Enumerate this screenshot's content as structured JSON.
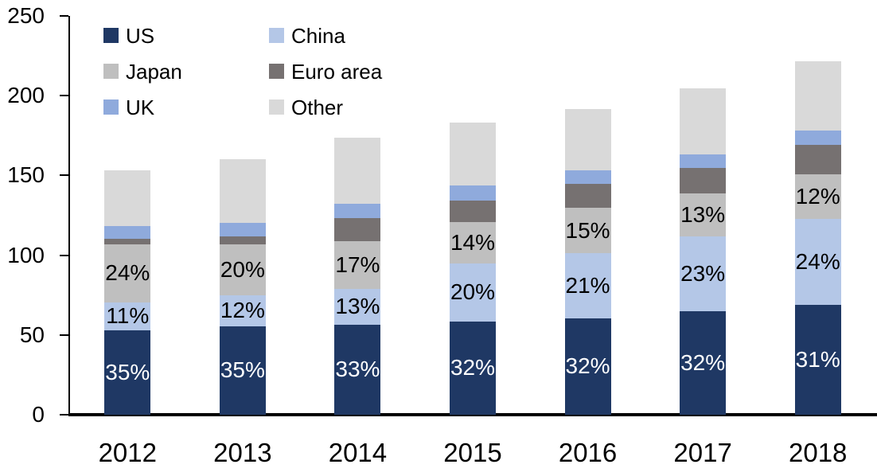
{
  "chart_data": {
    "type": "bar",
    "stacked": true,
    "title": "",
    "categories": [
      "2012",
      "2013",
      "2014",
      "2015",
      "2016",
      "2017",
      "2018"
    ],
    "series": [
      {
        "name": "US",
        "color": "#1f3864",
        "values": [
          53,
          55.5,
          56.5,
          58.5,
          60.5,
          65,
          69
        ],
        "labels": [
          "35%",
          "35%",
          "33%",
          "32%",
          "32%",
          "32%",
          "31%"
        ],
        "label_color": "#ffffff"
      },
      {
        "name": "China",
        "color": "#b4c7e7",
        "values": [
          17.5,
          19.5,
          22.5,
          36.5,
          41,
          47,
          54
        ],
        "labels": [
          "11%",
          "12%",
          "13%",
          "20%",
          "21%",
          "23%",
          "24%"
        ],
        "label_color": "#000000"
      },
      {
        "name": "Japan",
        "color": "#bfbfbf",
        "values": [
          36.5,
          32,
          30,
          26,
          28,
          26.5,
          27.5
        ],
        "labels": [
          "24%",
          "20%",
          "17%",
          "14%",
          "15%",
          "13%",
          "12%"
        ],
        "label_color": "#000000"
      },
      {
        "name": "Euro area",
        "color": "#767171",
        "values": [
          3.5,
          5,
          14.5,
          13,
          15,
          16,
          18.5
        ],
        "labels": null,
        "label_color": "#000000"
      },
      {
        "name": "UK",
        "color": "#8faadc",
        "values": [
          8,
          8.5,
          8.5,
          9.5,
          8.5,
          8.5,
          9
        ],
        "labels": null,
        "label_color": "#000000"
      },
      {
        "name": "Other",
        "color": "#d9d9d9",
        "values": [
          34.5,
          39.5,
          41.5,
          39.5,
          38.5,
          41.5,
          43.5
        ],
        "labels": null,
        "label_color": "#000000"
      }
    ],
    "y_axis": {
      "min": 0,
      "max": 250,
      "ticks": [
        0,
        50,
        100,
        150,
        200,
        250
      ]
    },
    "xlabel": "",
    "ylabel": "",
    "grid": false,
    "legend": {
      "position": "top-left",
      "columns": 2
    },
    "axis_color": "#000000",
    "background": "#ffffff"
  }
}
